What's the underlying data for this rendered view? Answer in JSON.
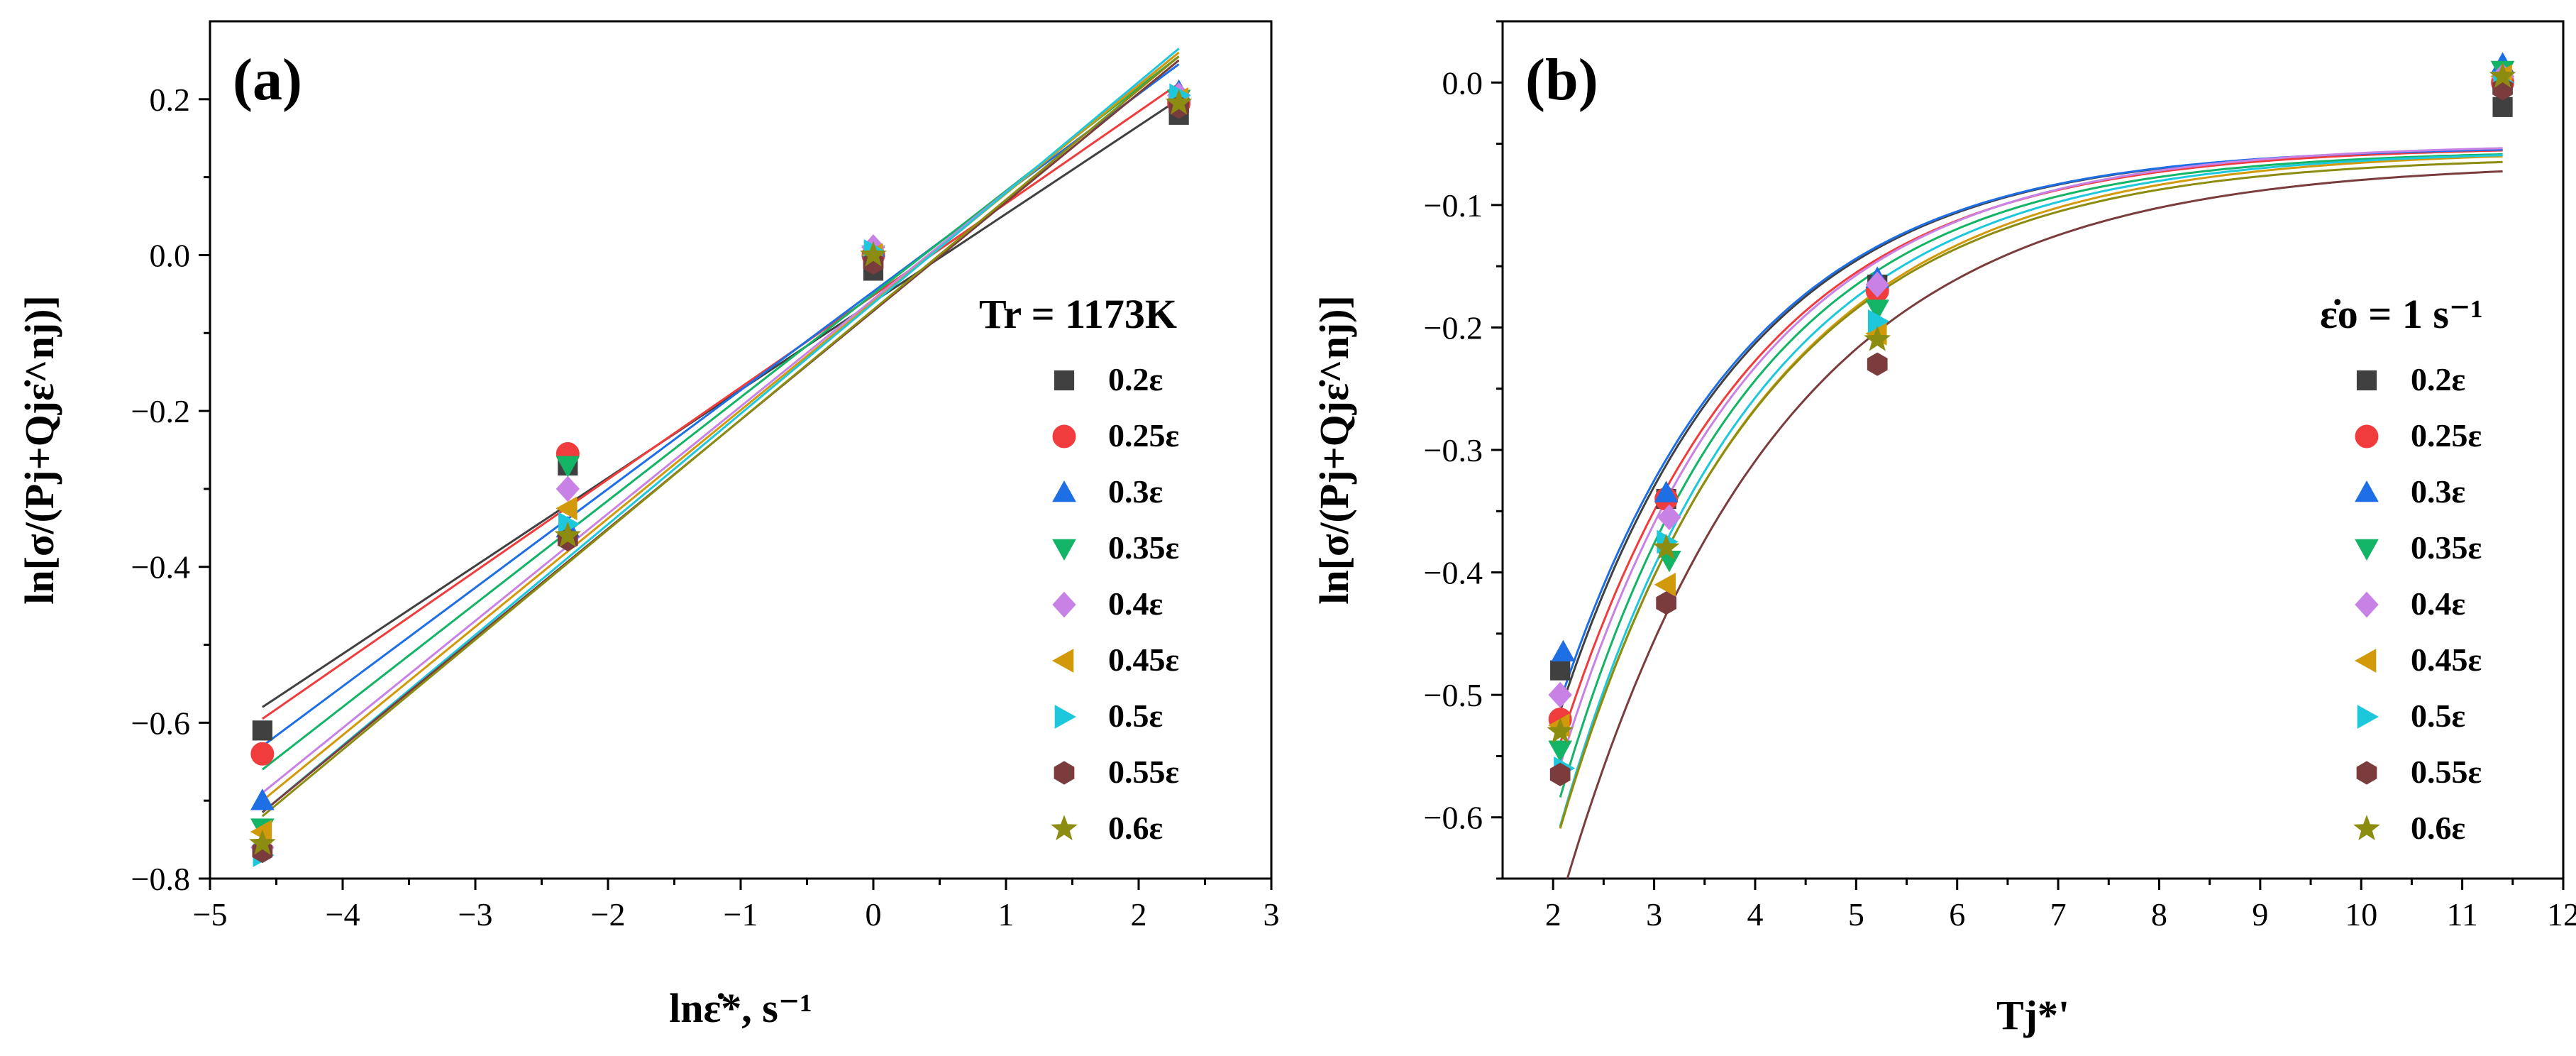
{
  "figure": {
    "series_styles": [
      {
        "label": "0.2ε",
        "color": "#404040",
        "marker": "square"
      },
      {
        "label": "0.25ε",
        "color": "#f03c3c",
        "marker": "circle"
      },
      {
        "label": "0.3ε",
        "color": "#1e6ee6",
        "marker": "triangle-up"
      },
      {
        "label": "0.35ε",
        "color": "#14b466",
        "marker": "triangle-down"
      },
      {
        "label": "0.4ε",
        "color": "#c882e6",
        "marker": "diamond"
      },
      {
        "label": "0.45ε",
        "color": "#d29a0a",
        "marker": "triangle-left"
      },
      {
        "label": "0.5ε",
        "color": "#1ec8dc",
        "marker": "triangle-right"
      },
      {
        "label": "0.55ε",
        "color": "#7a3c3c",
        "marker": "hexagon"
      },
      {
        "label": "0.6ε",
        "color": "#8c8c10",
        "marker": "star"
      }
    ]
  },
  "chart_data": [
    {
      "id": "a",
      "type": "scatter",
      "panel_label": "(a)",
      "fit": "linear",
      "xlabel": "lnε̇*, s⁻¹",
      "ylabel": "ln[σ/(Pj+Qjε̇^nj)]",
      "legend_title": "Tr = 1173K",
      "legend_position": "right",
      "xlim": [
        -5,
        3
      ],
      "ylim": [
        -0.8,
        0.3
      ],
      "xticks": [
        -5,
        -4,
        -3,
        -2,
        -1,
        0,
        1,
        2,
        3
      ],
      "yticks": [
        -0.8,
        -0.6,
        -0.4,
        -0.2,
        0.0,
        0.2
      ],
      "yticklabels": [
        "−0.8",
        "−0.6",
        "−0.4",
        "−0.2",
        "0.0",
        "0.2"
      ],
      "xticklabels": [
        "−5",
        "−4",
        "−3",
        "−2",
        "−1",
        "0",
        "1",
        "2",
        "3"
      ],
      "x": [
        -4.605,
        -2.303,
        0.0,
        2.303
      ],
      "series": [
        {
          "name": "0.2ε",
          "values": [
            -0.61,
            -0.27,
            -0.02,
            0.18
          ],
          "fit_endpoints": [
            [
              -4.605,
              -0.58
            ],
            [
              2.303,
              0.2
            ]
          ]
        },
        {
          "name": "0.25ε",
          "values": [
            -0.64,
            -0.255,
            0.0,
            0.195
          ],
          "fit_endpoints": [
            [
              -4.605,
              -0.595
            ],
            [
              2.303,
              0.22
            ]
          ]
        },
        {
          "name": "0.3ε",
          "values": [
            -0.7,
            -0.35,
            0.01,
            0.21
          ],
          "fit_endpoints": [
            [
              -4.605,
              -0.63
            ],
            [
              2.303,
              0.245
            ]
          ]
        },
        {
          "name": "0.35ε",
          "values": [
            -0.735,
            -0.27,
            0.0,
            0.2
          ],
          "fit_endpoints": [
            [
              -4.605,
              -0.66
            ],
            [
              2.303,
              0.255
            ]
          ]
        },
        {
          "name": "0.4ε",
          "values": [
            -0.76,
            -0.3,
            0.01,
            0.205
          ],
          "fit_endpoints": [
            [
              -4.605,
              -0.69
            ],
            [
              2.303,
              0.26
            ]
          ]
        },
        {
          "name": "0.45ε",
          "values": [
            -0.74,
            -0.325,
            0.0,
            0.2
          ],
          "fit_endpoints": [
            [
              -4.605,
              -0.7
            ],
            [
              2.303,
              0.26
            ]
          ]
        },
        {
          "name": "0.5ε",
          "values": [
            -0.77,
            -0.345,
            0.005,
            0.205
          ],
          "fit_endpoints": [
            [
              -4.605,
              -0.715
            ],
            [
              2.303,
              0.265
            ]
          ]
        },
        {
          "name": "0.55ε",
          "values": [
            -0.765,
            -0.365,
            -0.01,
            0.19
          ],
          "fit_endpoints": [
            [
              -4.605,
              -0.715
            ],
            [
              2.303,
              0.25
            ]
          ]
        },
        {
          "name": "0.6ε",
          "values": [
            -0.755,
            -0.36,
            0.0,
            0.195
          ],
          "fit_endpoints": [
            [
              -4.605,
              -0.72
            ],
            [
              2.303,
              0.255
            ]
          ]
        }
      ]
    },
    {
      "id": "b",
      "type": "scatter",
      "panel_label": "(b)",
      "fit": "exponential",
      "xlabel": "Tj*'",
      "ylabel": "ln[σ/(Pj+Qjε̇^nj)]",
      "legend_title": "ε̇o = 1 s⁻¹",
      "legend_position": "right",
      "xlim": [
        1.5,
        12
      ],
      "ylim": [
        -0.65,
        0.05
      ],
      "xticks": [
        2,
        3,
        4,
        5,
        6,
        7,
        8,
        9,
        10,
        11,
        12
      ],
      "xticklabels": [
        "2",
        "3",
        "4",
        "5",
        "6",
        "7",
        "8",
        "9",
        "10",
        "11",
        "12"
      ],
      "yticks": [
        -0.6,
        -0.5,
        -0.4,
        -0.3,
        -0.2,
        -0.1,
        0.0
      ],
      "yticklabels": [
        "−0.6",
        "−0.5",
        "−0.4",
        "−0.3",
        "−0.2",
        "−0.1",
        "0.0"
      ],
      "series": [
        {
          "name": "0.2ε",
          "x": [
            2.07,
            3.12,
            5.21,
            11.4
          ],
          "values": [
            -0.48,
            -0.34,
            -0.165,
            -0.02
          ],
          "fit": {
            "asymptote": -0.052,
            "amplitude": -1.425,
            "rate": 0.545,
            "x_start": 2.07,
            "x_end": 11.4
          }
        },
        {
          "name": "0.25ε",
          "x": [
            2.07,
            3.12,
            5.21,
            11.4
          ],
          "values": [
            -0.52,
            -0.34,
            -0.17,
            0.0
          ],
          "fit": {
            "asymptote": -0.052,
            "amplitude": -1.46,
            "rate": 0.53,
            "x_start": 2.07,
            "x_end": 11.4
          }
        },
        {
          "name": "0.3ε",
          "x": [
            2.1,
            3.12,
            5.21,
            11.4
          ],
          "values": [
            -0.465,
            -0.335,
            -0.16,
            0.015
          ],
          "fit": {
            "asymptote": -0.052,
            "amplitude": -1.4,
            "rate": 0.545,
            "x_start": 2.1,
            "x_end": 11.4
          }
        },
        {
          "name": "0.35ε",
          "x": [
            2.07,
            3.15,
            5.21,
            11.4
          ],
          "values": [
            -0.545,
            -0.39,
            -0.185,
            0.01
          ],
          "fit": {
            "asymptote": -0.055,
            "amplitude": -1.6,
            "rate": 0.535,
            "x_start": 2.07,
            "x_end": 11.4
          }
        },
        {
          "name": "0.4ε",
          "x": [
            2.07,
            3.15,
            5.21,
            11.4
          ],
          "values": [
            -0.5,
            -0.355,
            -0.165,
            0.005
          ],
          "fit": {
            "asymptote": -0.05,
            "amplitude": -1.52,
            "rate": 0.53,
            "x_start": 2.07,
            "x_end": 11.4
          }
        },
        {
          "name": "0.45ε",
          "x": [
            2.07,
            3.12,
            5.21,
            11.4
          ],
          "values": [
            -0.525,
            -0.41,
            -0.205,
            0.005
          ],
          "fit": {
            "asymptote": -0.055,
            "amplitude": -1.56,
            "rate": 0.5,
            "x_start": 2.07,
            "x_end": 11.4
          }
        },
        {
          "name": "0.5ε",
          "x": [
            2.1,
            3.12,
            5.21,
            11.4
          ],
          "values": [
            -0.56,
            -0.375,
            -0.195,
            0.0
          ],
          "fit": {
            "asymptote": -0.055,
            "amplitude": -1.62,
            "rate": 0.52,
            "x_start": 2.07,
            "x_end": 11.4
          }
        },
        {
          "name": "0.55ε",
          "x": [
            2.07,
            3.12,
            5.21,
            11.4
          ],
          "values": [
            -0.565,
            -0.425,
            -0.23,
            -0.005
          ],
          "fit": {
            "asymptote": -0.065,
            "amplitude": -1.6,
            "rate": 0.47,
            "x_start": 2.1,
            "x_end": 11.4
          }
        },
        {
          "name": "0.6ε",
          "x": [
            2.07,
            3.12,
            5.21,
            11.4
          ],
          "values": [
            -0.53,
            -0.38,
            -0.21,
            0.005
          ],
          "fit": {
            "asymptote": -0.06,
            "amplitude": -1.56,
            "rate": 0.505,
            "x_start": 2.07,
            "x_end": 11.4
          }
        }
      ]
    }
  ]
}
